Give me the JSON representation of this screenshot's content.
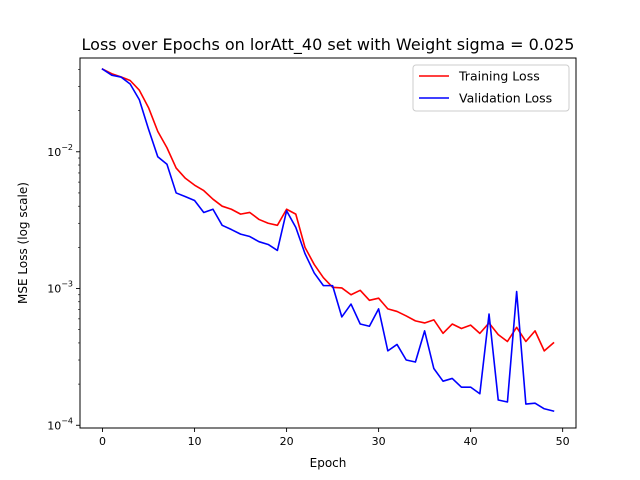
{
  "chart_data": {
    "type": "line",
    "title": "Loss over Epochs on lorAtt_40 set with Weight sigma = 0.025",
    "xlabel": "Epoch",
    "ylabel": "MSE Loss (log scale)",
    "xlim": [
      -2.45,
      51.45
    ],
    "ylim": [
      9.55e-05,
      0.0485
    ],
    "yscale": "log",
    "grid": false,
    "legend_position": "top-right",
    "x_ticks": [
      0,
      10,
      20,
      30,
      40,
      50
    ],
    "x_tick_labels": [
      "0",
      "10",
      "20",
      "30",
      "40",
      "50"
    ],
    "y_major_ticks": [
      0.0001,
      0.001,
      0.01
    ],
    "y_tick_labels": [
      {
        "base": "10",
        "exp": "−4"
      },
      {
        "base": "10",
        "exp": "−3"
      },
      {
        "base": "10",
        "exp": "−2"
      }
    ],
    "x": [
      0,
      1,
      2,
      3,
      4,
      5,
      6,
      7,
      8,
      9,
      10,
      11,
      12,
      13,
      14,
      15,
      16,
      17,
      18,
      19,
      20,
      21,
      22,
      23,
      24,
      25,
      26,
      27,
      28,
      29,
      30,
      31,
      32,
      33,
      34,
      35,
      36,
      37,
      38,
      39,
      40,
      41,
      42,
      43,
      44,
      45,
      46,
      47,
      48,
      49
    ],
    "series": [
      {
        "name": "Training Loss",
        "color": "#ff0000",
        "values": [
          0.0402,
          0.0372,
          0.0353,
          0.0332,
          0.0282,
          0.021,
          0.0141,
          0.0107,
          0.0076,
          0.0064,
          0.0057,
          0.0052,
          0.0045,
          0.004,
          0.0038,
          0.0035,
          0.0036,
          0.0032,
          0.003,
          0.0029,
          0.0038,
          0.0035,
          0.002,
          0.0015,
          0.0012,
          0.00102,
          0.00101,
          0.0009,
          0.00097,
          0.00082,
          0.00085,
          0.00071,
          0.00068,
          0.00063,
          0.00058,
          0.00056,
          0.00059,
          0.00047,
          0.00055,
          0.00051,
          0.00054,
          0.00047,
          0.00056,
          0.00046,
          0.00041,
          0.00052,
          0.00041,
          0.00049,
          0.00035,
          0.0004
        ]
      },
      {
        "name": "Validation Loss",
        "color": "#0000ff",
        "values": [
          0.0402,
          0.0363,
          0.0352,
          0.0313,
          0.024,
          0.0146,
          0.0092,
          0.0081,
          0.005,
          0.0047,
          0.0044,
          0.0036,
          0.0038,
          0.0029,
          0.0027,
          0.0025,
          0.0024,
          0.0022,
          0.0021,
          0.0019,
          0.0037,
          0.0028,
          0.0018,
          0.0013,
          0.00105,
          0.00105,
          0.00062,
          0.00077,
          0.00055,
          0.00053,
          0.00071,
          0.00035,
          0.00039,
          0.0003,
          0.00029,
          0.00049,
          0.00026,
          0.00021,
          0.00022,
          0.00019,
          0.00019,
          0.00017,
          0.00065,
          0.000153,
          0.000148,
          0.00095,
          0.000143,
          0.000145,
          0.000132,
          0.000127
        ]
      }
    ]
  }
}
